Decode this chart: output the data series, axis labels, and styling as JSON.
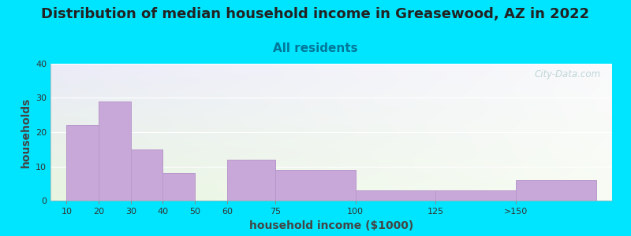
{
  "title": "Distribution of median household income in Greasewood, AZ in 2022",
  "subtitle": "All residents",
  "xlabel": "household income ($1000)",
  "ylabel": "households",
  "bar_labels": [
    "10",
    "20",
    "30",
    "40",
    "50",
    "60",
    "75",
    "100",
    "125",
    ">150"
  ],
  "bar_values": [
    22,
    29,
    15,
    8,
    0,
    12,
    9,
    3,
    3,
    6
  ],
  "bar_lefts": [
    10,
    20,
    30,
    40,
    50,
    60,
    75,
    100,
    125,
    150
  ],
  "bar_widths": [
    10,
    10,
    10,
    10,
    10,
    15,
    25,
    25,
    25,
    25
  ],
  "bar_color": "#c8a8d8",
  "bar_edgecolor": "#b898cc",
  "ylim": [
    0,
    40
  ],
  "yticks": [
    0,
    10,
    20,
    30,
    40
  ],
  "xlim_left": 5,
  "xlim_right": 180,
  "tick_positions": [
    10,
    20,
    30,
    40,
    50,
    60,
    75,
    100,
    125,
    150
  ],
  "background_outer": "#00e5ff",
  "bg_topleft": "#e8f5e0",
  "bg_topright": "#f5f5f0",
  "bg_bottomleft": "#e8e8f5",
  "bg_bottomright": "#f5f5f8",
  "title_fontsize": 13,
  "subtitle_fontsize": 11,
  "subtitle_color": "#007799",
  "axis_label_fontsize": 10,
  "tick_fontsize": 8,
  "watermark": "City-Data.com"
}
